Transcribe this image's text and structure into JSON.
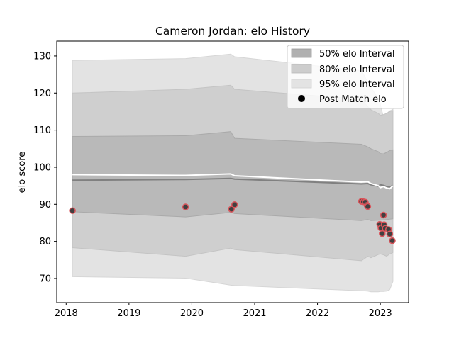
{
  "chart_data": {
    "type": "line",
    "title": "Cameron Jordan: elo History",
    "xlabel": "",
    "ylabel": "elo score",
    "xlim": [
      2017.85,
      2023.45
    ],
    "ylim": [
      63.5,
      134
    ],
    "xticks": [
      2018,
      2019,
      2020,
      2021,
      2022,
      2023
    ],
    "xtick_labels": [
      "2018",
      "2019",
      "2020",
      "2021",
      "2022",
      "2023"
    ],
    "yticks": [
      70,
      80,
      90,
      100,
      110,
      120,
      130
    ],
    "ytick_labels": [
      "70",
      "80",
      "90",
      "100",
      "110",
      "120",
      "130"
    ],
    "grid": false,
    "legend_position": "top-right",
    "legend": [
      {
        "label": "50% elo Interval",
        "kind": "band",
        "color": "#b0b0b0"
      },
      {
        "label": "80% elo Interval",
        "kind": "band",
        "color": "#cdcdcd"
      },
      {
        "label": "95% elo Interval",
        "kind": "band",
        "color": "#e3e3e3"
      },
      {
        "label": "Post Match elo",
        "kind": "marker",
        "color": "#000000"
      }
    ],
    "x": [
      2018.1,
      2019.9,
      2020.62,
      2020.68,
      2022.7,
      2022.8,
      2022.85,
      2022.97,
      2023.0,
      2023.05,
      2023.1,
      2023.15,
      2023.2
    ],
    "mean_line": [
      96.5,
      96.7,
      97.0,
      96.8,
      95.5,
      95.6,
      95.3,
      94.9,
      95.3,
      95.1,
      94.8,
      94.7,
      95.1
    ],
    "median_line": [
      98.0,
      97.8,
      98.2,
      97.7,
      96.0,
      96.1,
      95.6,
      95.0,
      94.5,
      94.8,
      94.4,
      94.2,
      95.0
    ],
    "bands": {
      "p50": {
        "upper": [
          108.3,
          108.5,
          109.6,
          107.8,
          106.2,
          105.5,
          105.0,
          104.2,
          103.7,
          103.6,
          104.0,
          104.5,
          104.7
        ],
        "lower": [
          88.0,
          86.6,
          87.8,
          87.5,
          85.6,
          85.9,
          85.6,
          85.7,
          85.7,
          85.8,
          85.9,
          86.0,
          86.1
        ]
      },
      "p80": {
        "upper": [
          120.0,
          121.0,
          122.1,
          121.0,
          118.3,
          116.3,
          115.5,
          114.5,
          114.0,
          114.2,
          114.5,
          115.0,
          115.3
        ],
        "lower": [
          78.3,
          76.0,
          78.2,
          77.8,
          74.8,
          76.0,
          75.6,
          76.5,
          76.6,
          76.4,
          76.0,
          76.6,
          77.0
        ]
      },
      "p95": {
        "upper": [
          128.8,
          129.3,
          130.5,
          129.8,
          126.0,
          123.0,
          121.5,
          118.5,
          117.0,
          113.4,
          114.5,
          115.2,
          115.6
        ],
        "lower": [
          70.5,
          70.1,
          68.2,
          68.1,
          66.7,
          66.6,
          66.4,
          66.4,
          66.5,
          66.5,
          66.6,
          67.0,
          69.2
        ]
      }
    },
    "post_match_x": [
      2018.1,
      2019.9,
      2020.63,
      2020.68,
      2022.7,
      2022.73,
      2022.76,
      2022.79,
      2022.8,
      2022.99,
      2023.01,
      2023.03,
      2023.05,
      2023.06,
      2023.08,
      2023.13,
      2023.15,
      2023.19
    ],
    "post_match_elo": [
      88.3,
      89.3,
      88.7,
      89.9,
      90.8,
      90.7,
      90.6,
      89.7,
      89.4,
      84.6,
      83.6,
      82.1,
      87.1,
      84.5,
      83.5,
      83.2,
      82.0,
      80.2
    ],
    "colors": {
      "band_50": "#b9b9b9",
      "band_80": "#cfcfcf",
      "band_95": "#e3e3e3",
      "mean_line": "#808080",
      "median_line": "#ffffff",
      "marker_face": "#404040",
      "marker_edge": "#d9545a"
    }
  }
}
